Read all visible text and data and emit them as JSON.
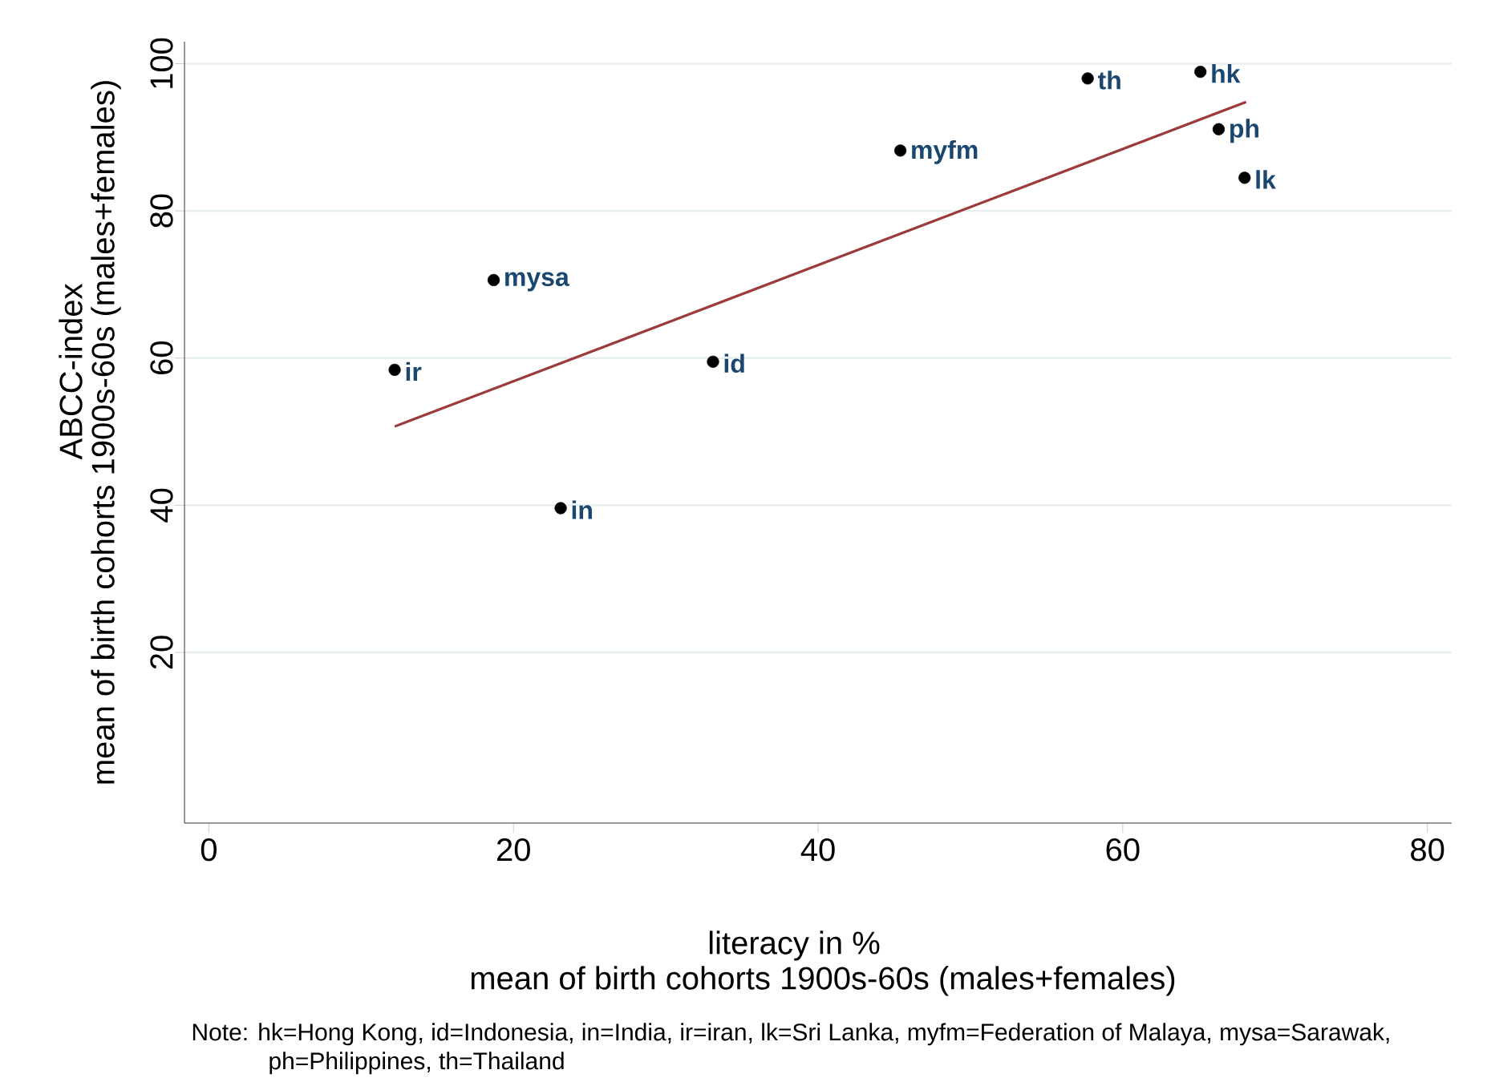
{
  "chart_data": {
    "type": "scatter",
    "xlabel": [
      "literacy in %",
      "mean of birth cohorts 1900s-60s (males+females)"
    ],
    "ylabel": [
      "ABCC-index",
      "mean of birth cohorts 1900s-60s (males+females)"
    ],
    "series": [
      {
        "color": "#000000",
        "x": [
          12.2,
          18.7,
          23.1,
          33.1,
          45.4,
          57.7,
          65.1,
          66.3,
          68.0
        ],
        "values": [
          58.4,
          70.6,
          39.6,
          59.5,
          88.2,
          98.0,
          98.9,
          91.1,
          84.5
        ]
      },
      {
        "type": "line",
        "marker": "none",
        "color": "#9b3b3b",
        "x": [
          12.2,
          68.1
        ],
        "values": [
          50.7,
          94.8
        ]
      }
    ],
    "annotations": [
      {
        "text": "ir",
        "x": 12.2,
        "y": 58.4
      },
      {
        "text": "mysa",
        "x": 18.7,
        "y": 70.6
      },
      {
        "text": "in",
        "x": 23.1,
        "y": 39.6
      },
      {
        "text": "id",
        "x": 33.1,
        "y": 59.5
      },
      {
        "text": "myfm",
        "x": 45.4,
        "y": 88.2
      },
      {
        "text": "th",
        "x": 57.7,
        "y": 98.0
      },
      {
        "text": "hk",
        "x": 65.1,
        "y": 98.9
      },
      {
        "text": "ph",
        "x": 66.3,
        "y": 91.1
      },
      {
        "text": "lk",
        "x": 68.0,
        "y": 84.5
      },
      "Note: hk=Hong Kong, id=Indonesia, in=India, ir=iran, lk=Sri Lanka, myfm=Federation of Malaya, mysa=Sarawak, ph=Philippines, th=Thailand"
    ],
    "xlim": [
      -1.6,
      81.6
    ],
    "ylim": [
      -3.2,
      103
    ],
    "xticks": [
      0,
      20,
      40,
      60,
      80
    ],
    "yticks": [
      20,
      40,
      60,
      80,
      100
    ],
    "grid": "y",
    "marker": "circle"
  }
}
